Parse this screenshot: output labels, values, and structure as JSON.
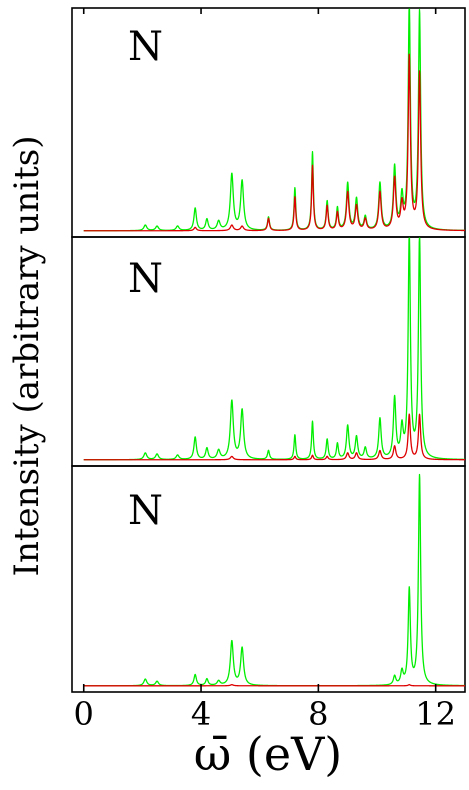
{
  "chart_data": {
    "type": "line",
    "ylabel": "Intensity (arbitrary units)",
    "xlabel": "ω̄ (eV)",
    "xlim": [
      -0.4,
      13
    ],
    "xticks": [
      0,
      4,
      8,
      12
    ],
    "xtick_labels": [
      "0",
      "4",
      "8",
      "12"
    ],
    "shared_x_axis": true,
    "grid": false,
    "legend": "none",
    "colors": {
      "green": "#00ee00",
      "red": "#dd0000"
    },
    "panels": [
      {
        "label": "N",
        "ylim": [
          0,
          1.0
        ],
        "series": [
          {
            "color": "#00ee00",
            "baseline": 0.01,
            "peaks": [
              [
                2.1,
                0.025,
                0.06
              ],
              [
                2.5,
                0.02,
                0.06
              ],
              [
                3.2,
                0.02,
                0.06
              ],
              [
                3.8,
                0.1,
                0.05
              ],
              [
                4.2,
                0.05,
                0.05
              ],
              [
                4.6,
                0.04,
                0.06
              ],
              [
                5.05,
                0.25,
                0.06
              ],
              [
                5.4,
                0.22,
                0.06
              ],
              [
                6.3,
                0.06,
                0.04
              ],
              [
                7.2,
                0.19,
                0.035
              ],
              [
                7.8,
                0.35,
                0.035
              ],
              [
                8.3,
                0.13,
                0.04
              ],
              [
                8.65,
                0.1,
                0.04
              ],
              [
                9.0,
                0.21,
                0.05
              ],
              [
                9.3,
                0.14,
                0.05
              ],
              [
                9.6,
                0.06,
                0.05
              ],
              [
                10.1,
                0.21,
                0.05
              ],
              [
                10.6,
                0.28,
                0.05
              ],
              [
                10.85,
                0.14,
                0.05
              ],
              [
                11.1,
                1.0,
                0.045
              ],
              [
                11.45,
                0.97,
                0.045
              ]
            ]
          },
          {
            "color": "#dd0000",
            "baseline": 0.01,
            "peaks": [
              [
                3.8,
                0.015,
                0.05
              ],
              [
                5.05,
                0.025,
                0.06
              ],
              [
                5.4,
                0.02,
                0.06
              ],
              [
                6.3,
                0.055,
                0.04
              ],
              [
                7.2,
                0.15,
                0.035
              ],
              [
                7.8,
                0.29,
                0.035
              ],
              [
                8.3,
                0.11,
                0.04
              ],
              [
                8.65,
                0.08,
                0.04
              ],
              [
                9.0,
                0.17,
                0.05
              ],
              [
                9.3,
                0.11,
                0.05
              ],
              [
                9.6,
                0.05,
                0.05
              ],
              [
                10.1,
                0.17,
                0.05
              ],
              [
                10.6,
                0.23,
                0.05
              ],
              [
                10.85,
                0.11,
                0.05
              ],
              [
                11.1,
                0.77,
                0.045
              ],
              [
                11.45,
                0.7,
                0.045
              ]
            ]
          }
        ]
      },
      {
        "label": "N",
        "ylim": [
          0,
          1.0
        ],
        "series": [
          {
            "color": "#00ee00",
            "baseline": 0.01,
            "peaks": [
              [
                2.1,
                0.03,
                0.06
              ],
              [
                2.5,
                0.025,
                0.06
              ],
              [
                3.2,
                0.02,
                0.06
              ],
              [
                3.8,
                0.1,
                0.05
              ],
              [
                4.2,
                0.05,
                0.05
              ],
              [
                4.6,
                0.04,
                0.06
              ],
              [
                5.05,
                0.26,
                0.06
              ],
              [
                5.4,
                0.22,
                0.06
              ],
              [
                6.3,
                0.04,
                0.04
              ],
              [
                7.2,
                0.11,
                0.035
              ],
              [
                7.8,
                0.17,
                0.035
              ],
              [
                8.3,
                0.09,
                0.04
              ],
              [
                8.65,
                0.07,
                0.04
              ],
              [
                9.0,
                0.15,
                0.05
              ],
              [
                9.3,
                0.1,
                0.05
              ],
              [
                9.6,
                0.05,
                0.05
              ],
              [
                10.1,
                0.18,
                0.05
              ],
              [
                10.6,
                0.27,
                0.05
              ],
              [
                10.85,
                0.13,
                0.05
              ],
              [
                11.1,
                1.0,
                0.045
              ],
              [
                11.45,
                1.0,
                0.045
              ]
            ]
          },
          {
            "color": "#dd0000",
            "baseline": 0.01,
            "peaks": [
              [
                5.05,
                0.015,
                0.06
              ],
              [
                7.2,
                0.015,
                0.035
              ],
              [
                7.8,
                0.02,
                0.035
              ],
              [
                8.3,
                0.015,
                0.04
              ],
              [
                9.0,
                0.03,
                0.05
              ],
              [
                9.3,
                0.03,
                0.05
              ],
              [
                10.1,
                0.04,
                0.05
              ],
              [
                10.6,
                0.06,
                0.05
              ],
              [
                11.1,
                0.2,
                0.045
              ],
              [
                11.45,
                0.2,
                0.045
              ]
            ]
          }
        ]
      },
      {
        "label": "N",
        "ylim": [
          0,
          1.0
        ],
        "series": [
          {
            "color": "#00ee00",
            "baseline": 0.01,
            "peaks": [
              [
                2.1,
                0.03,
                0.06
              ],
              [
                2.5,
                0.02,
                0.06
              ],
              [
                3.8,
                0.05,
                0.05
              ],
              [
                4.2,
                0.03,
                0.05
              ],
              [
                4.6,
                0.02,
                0.06
              ],
              [
                5.05,
                0.2,
                0.06
              ],
              [
                5.4,
                0.17,
                0.06
              ],
              [
                10.6,
                0.04,
                0.05
              ],
              [
                10.85,
                0.06,
                0.05
              ],
              [
                11.1,
                0.43,
                0.045
              ],
              [
                11.45,
                0.95,
                0.045
              ]
            ]
          },
          {
            "color": "#dd0000",
            "baseline": 0.01,
            "peaks": [
              [
                5.05,
                0.005,
                0.06
              ],
              [
                11.1,
                0.005,
                0.045
              ]
            ]
          }
        ]
      }
    ]
  }
}
